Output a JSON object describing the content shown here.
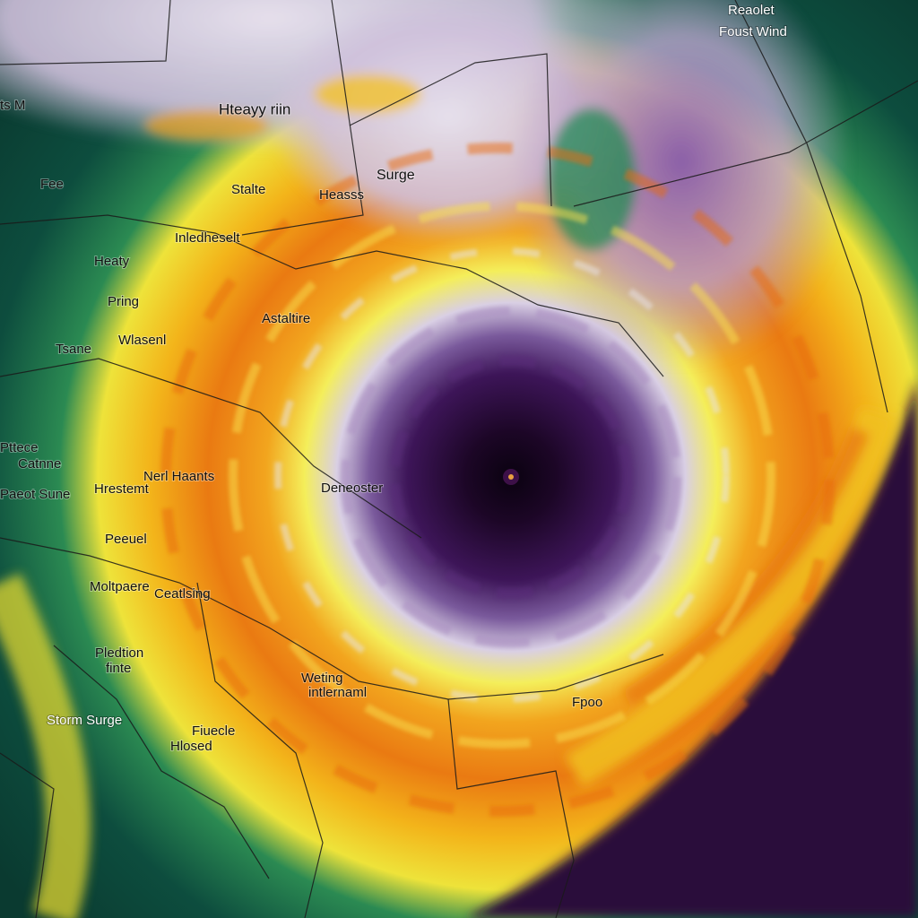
{
  "labels": [
    {
      "text": "Reaolet"
    },
    {
      "text": "Foust Wind"
    },
    {
      "text": "ts M"
    },
    {
      "text": "Hteayy riin"
    },
    {
      "text": "Surge"
    },
    {
      "text": "Fee"
    },
    {
      "text": "Stalte"
    },
    {
      "text": "Heasss"
    },
    {
      "text": "Inledheselt"
    },
    {
      "text": "Heaty"
    },
    {
      "text": "Pring"
    },
    {
      "text": "Astaltire"
    },
    {
      "text": "Tsane"
    },
    {
      "text": "Wlasenl"
    },
    {
      "text": "Pttece"
    },
    {
      "text": "Catnne"
    },
    {
      "text": "Nerl Haants"
    },
    {
      "text": "Hrestemt"
    },
    {
      "text": "Deneoster"
    },
    {
      "text": "Paeot Sune"
    },
    {
      "text": "Peeuel"
    },
    {
      "text": "Moltpaere"
    },
    {
      "text": "Ceatlsing"
    },
    {
      "text": "Pledtion"
    },
    {
      "text": "finte"
    },
    {
      "text": "Weting"
    },
    {
      "text": "intlernaml"
    },
    {
      "text": "Fpoo"
    },
    {
      "text": "Storm Surge"
    },
    {
      "text": "Fiuecle"
    },
    {
      "text": "Hlosed"
    }
  ]
}
